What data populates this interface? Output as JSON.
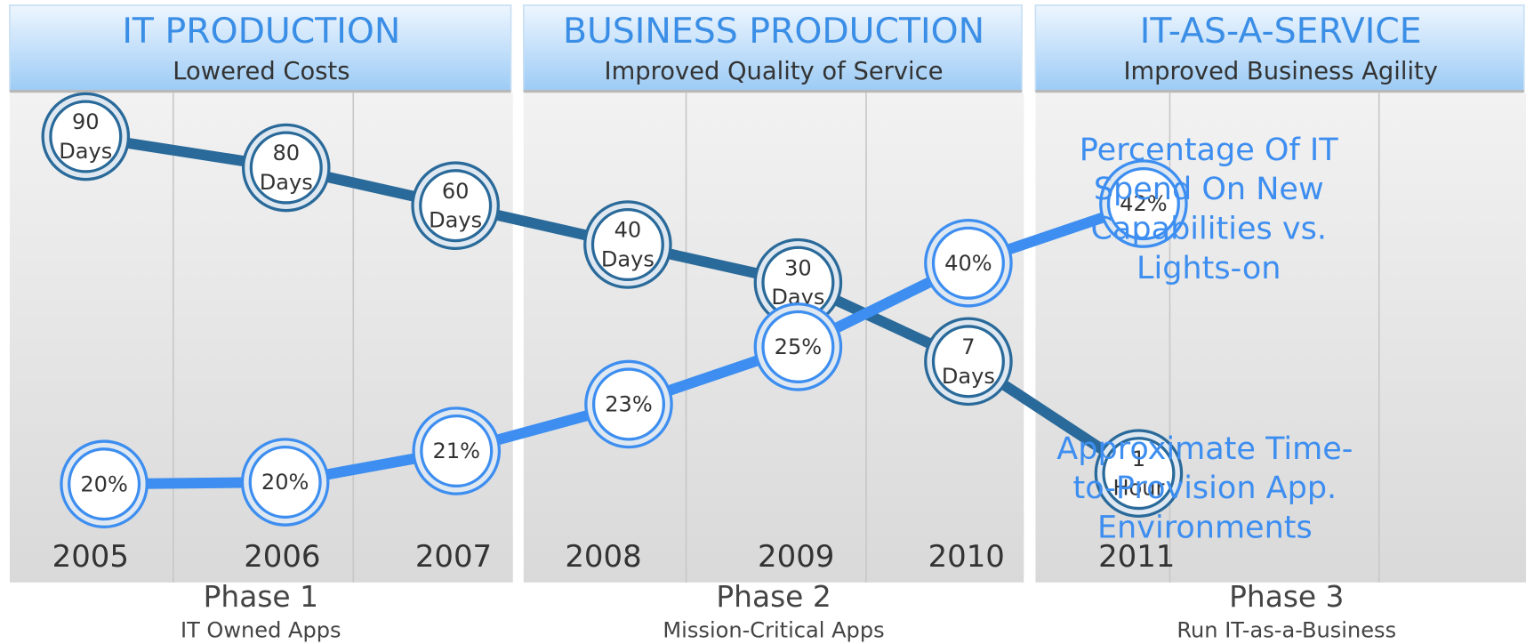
{
  "headers": [
    {
      "title": "IT PRODUCTION",
      "subtitle": "Lowered Costs"
    },
    {
      "title": "BUSINESS PRODUCTION",
      "subtitle": "Improved Quality of Service"
    },
    {
      "title": "IT-AS-A-SERVICE",
      "subtitle": "Improved Business Agility"
    }
  ],
  "years": [
    "2005",
    "2006",
    "2007",
    "2008",
    "2009",
    "2010",
    "2011"
  ],
  "phases": [
    {
      "name": "Phase 1",
      "subtitle": "IT Owned Apps"
    },
    {
      "name": "Phase 2",
      "subtitle": "Mission-Critical Apps"
    },
    {
      "name": "Phase 3",
      "subtitle": "Run IT-as-a-Business"
    }
  ],
  "lines": [
    {
      "label_lines": [
        "Approximate Time-",
        "to-Provision App.",
        "Environments"
      ],
      "points": [
        [
          "90",
          "Days"
        ],
        [
          "80",
          "Days"
        ],
        [
          "60",
          "Days"
        ],
        [
          "40",
          "Days"
        ],
        [
          "30",
          "Days"
        ],
        [
          "7",
          "Days"
        ],
        [
          "1",
          "Hour"
        ]
      ]
    },
    {
      "label_lines": [
        "Percentage Of IT",
        "Spend On New",
        "Capabilities vs.",
        "Lights-on"
      ],
      "points": [
        [
          "20%"
        ],
        [
          "20%"
        ],
        [
          "21%"
        ],
        [
          "23%"
        ],
        [
          "25%"
        ],
        [
          "40%"
        ],
        [
          "42%"
        ]
      ]
    }
  ]
}
